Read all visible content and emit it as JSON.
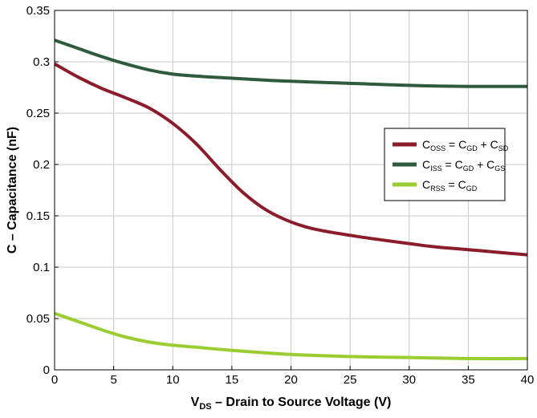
{
  "chart_data": {
    "type": "line",
    "xlabel": {
      "main": "V",
      "sub": "DS",
      "rest": " – Drain to Source Voltage (V)"
    },
    "ylabel": "C – Capacitance (nF)",
    "xlim": [
      0,
      40
    ],
    "ylim": [
      0,
      0.35
    ],
    "xticks": [
      0,
      5,
      10,
      15,
      20,
      25,
      30,
      35,
      40
    ],
    "xtick_labels": [
      "0",
      "5",
      "10",
      "15",
      "20",
      "25",
      "30",
      "35",
      "40"
    ],
    "yticks": [
      0,
      0.05,
      0.1,
      0.15,
      0.2,
      0.25,
      0.3,
      0.35
    ],
    "ytick_labels": [
      "0",
      "0.05",
      "0.1",
      "0.15",
      "0.2",
      "0.25",
      "0.3",
      "0.35"
    ],
    "grid": true,
    "legend_position": "right",
    "series": [
      {
        "name": "COSS = CGD + CSD",
        "legend": [
          {
            "t": "C"
          },
          {
            "t": "OSS",
            "sub": true
          },
          {
            "t": " = C"
          },
          {
            "t": "GD",
            "sub": true
          },
          {
            "t": " + C"
          },
          {
            "t": "SD",
            "sub": true
          }
        ],
        "color": "#8b1c2a",
        "x": [
          0,
          2,
          4,
          6,
          8,
          10,
          12,
          14,
          16,
          18,
          20,
          22,
          25,
          28,
          30,
          32,
          35,
          38,
          40
        ],
        "y": [
          0.298,
          0.285,
          0.274,
          0.265,
          0.255,
          0.24,
          0.22,
          0.195,
          0.172,
          0.155,
          0.144,
          0.137,
          0.131,
          0.126,
          0.123,
          0.12,
          0.117,
          0.114,
          0.112
        ]
      },
      {
        "name": "CISS = CGD + CGS",
        "legend": [
          {
            "t": "C"
          },
          {
            "t": "ISS",
            "sub": true
          },
          {
            "t": " = C"
          },
          {
            "t": "GD",
            "sub": true
          },
          {
            "t": " + C"
          },
          {
            "t": "GS",
            "sub": true
          }
        ],
        "color": "#2e5a3d",
        "x": [
          0,
          2,
          4,
          6,
          8,
          10,
          12,
          15,
          18,
          20,
          25,
          30,
          35,
          40
        ],
        "y": [
          0.321,
          0.313,
          0.305,
          0.298,
          0.292,
          0.288,
          0.286,
          0.284,
          0.282,
          0.281,
          0.279,
          0.277,
          0.276,
          0.276
        ]
      },
      {
        "name": "CRSS = CGD",
        "legend": [
          {
            "t": "C"
          },
          {
            "t": "RSS",
            "sub": true
          },
          {
            "t": " = C"
          },
          {
            "t": "GD",
            "sub": true
          }
        ],
        "color": "#9acd32",
        "x": [
          0,
          2,
          4,
          6,
          8,
          10,
          12,
          15,
          20,
          25,
          30,
          35,
          40
        ],
        "y": [
          0.055,
          0.047,
          0.039,
          0.032,
          0.027,
          0.024,
          0.022,
          0.019,
          0.015,
          0.013,
          0.012,
          0.011,
          0.011
        ]
      }
    ]
  }
}
